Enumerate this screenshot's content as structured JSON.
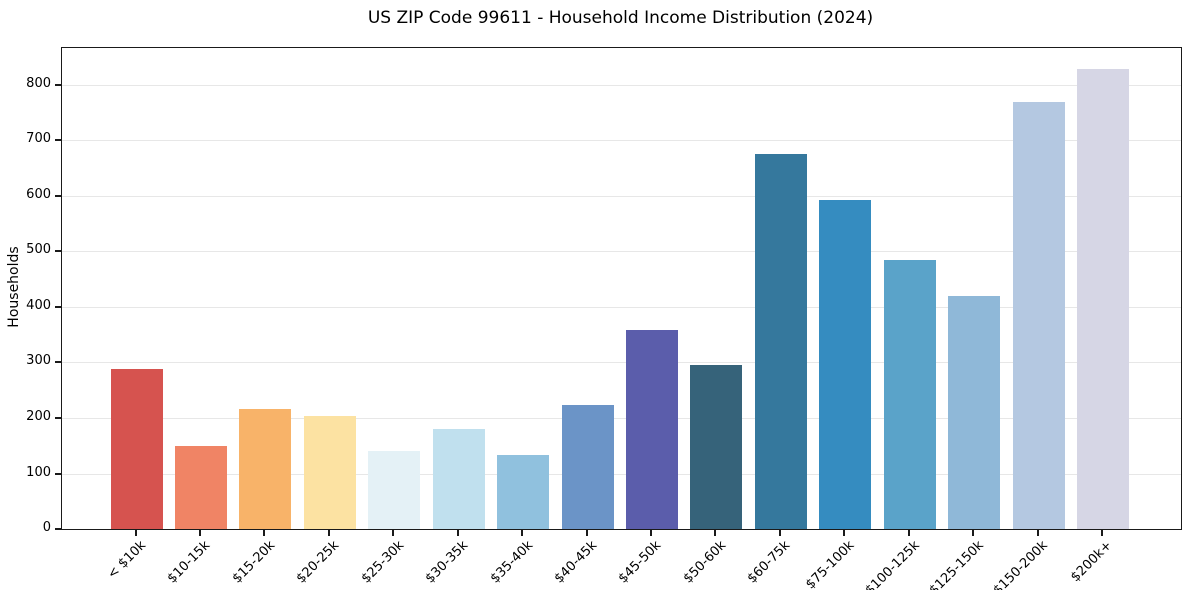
{
  "figure": {
    "title": "US ZIP Code 99611 - Household Income Distribution (2024)",
    "ylabel": "Households"
  },
  "chart_data": {
    "type": "bar",
    "title": "US ZIP Code 99611 - Household Income Distribution (2024)",
    "xlabel": "",
    "ylabel": "Households",
    "categories": [
      "< $10k",
      "$10-15k",
      "$15-20k",
      "$20-25k",
      "$25-30k",
      "$30-35k",
      "$35-40k",
      "$40-45k",
      "$45-50k",
      "$50-60k",
      "$60-75k",
      "$75-100k",
      "$100-125k",
      "$125-150k",
      "$150-200k",
      "$200k+"
    ],
    "values": [
      288,
      149,
      217,
      203,
      140,
      181,
      134,
      224,
      358,
      295,
      675,
      592,
      484,
      420,
      768,
      829
    ],
    "bar_colors": [
      "#d6534f",
      "#f08465",
      "#f8b369",
      "#fce2a2",
      "#e4f1f6",
      "#c0e0ee",
      "#90c1de",
      "#6b94c7",
      "#5b5dab",
      "#36637a",
      "#35789d",
      "#358cc0",
      "#5aa3c9",
      "#8fb8d8",
      "#b4c8e1",
      "#d6d6e5"
    ],
    "yticks": [
      0,
      100,
      200,
      300,
      400,
      500,
      600,
      700,
      800
    ],
    "ylim": [
      0,
      866
    ],
    "grid": "horizontal",
    "legend_position": "none",
    "axis_color": "#1a1a1a",
    "gridline_color": "#e7e7e7"
  }
}
